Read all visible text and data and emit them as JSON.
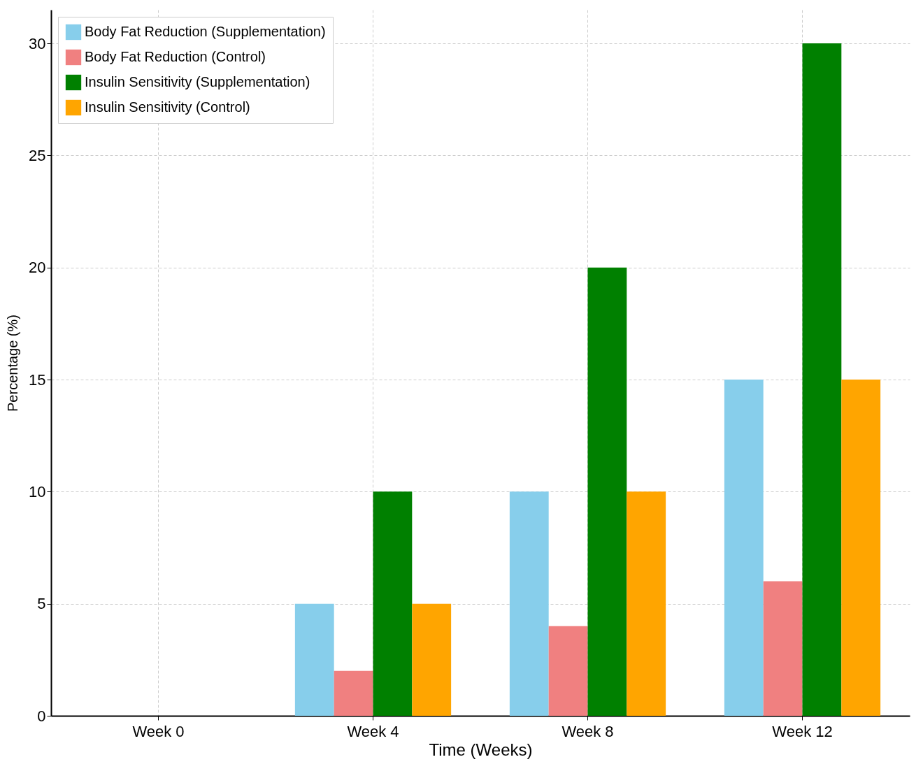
{
  "chart_data": {
    "type": "bar",
    "xlabel": "Time (Weeks)",
    "ylabel": "Percentage (%)",
    "categories": [
      "Week 0",
      "Week 4",
      "Week 8",
      "Week 12"
    ],
    "series": [
      {
        "name": "Body Fat Reduction (Supplementation)",
        "color": "#87ceeb",
        "values": [
          0,
          5,
          10,
          15
        ]
      },
      {
        "name": "Body Fat Reduction (Control)",
        "color": "#f08080",
        "values": [
          0,
          2,
          4,
          6
        ]
      },
      {
        "name": "Insulin Sensitivity (Supplementation)",
        "color": "#008000",
        "values": [
          0,
          10,
          20,
          30
        ]
      },
      {
        "name": "Insulin Sensitivity (Control)",
        "color": "#ffa500",
        "values": [
          0,
          5,
          10,
          15
        ]
      }
    ],
    "ylim": [
      0,
      31.5
    ],
    "yticks": [
      0,
      5,
      10,
      15,
      20,
      25,
      30
    ],
    "grid": true,
    "legend": "top left"
  }
}
